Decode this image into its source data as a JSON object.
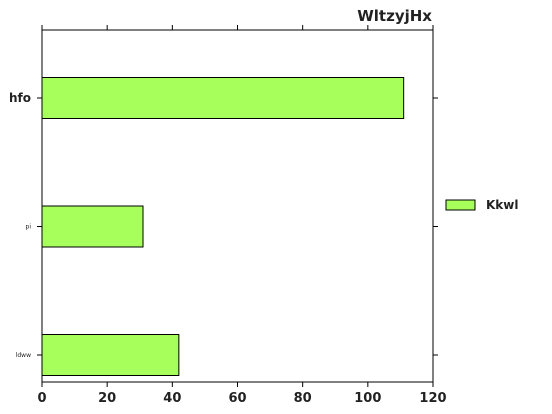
{
  "chart_data": {
    "type": "bar",
    "orientation": "horizontal",
    "title": "WltzyjHx",
    "categories": [
      "hfo",
      "pi",
      "ldww"
    ],
    "series": [
      {
        "name": "Kkwl",
        "values": [
          111,
          31,
          42
        ],
        "color": "#a6ff5a"
      }
    ],
    "xlim": [
      0,
      120
    ],
    "xticks": [
      0,
      20,
      40,
      60,
      80,
      100,
      120
    ],
    "grid": false,
    "legend_position": "right"
  }
}
